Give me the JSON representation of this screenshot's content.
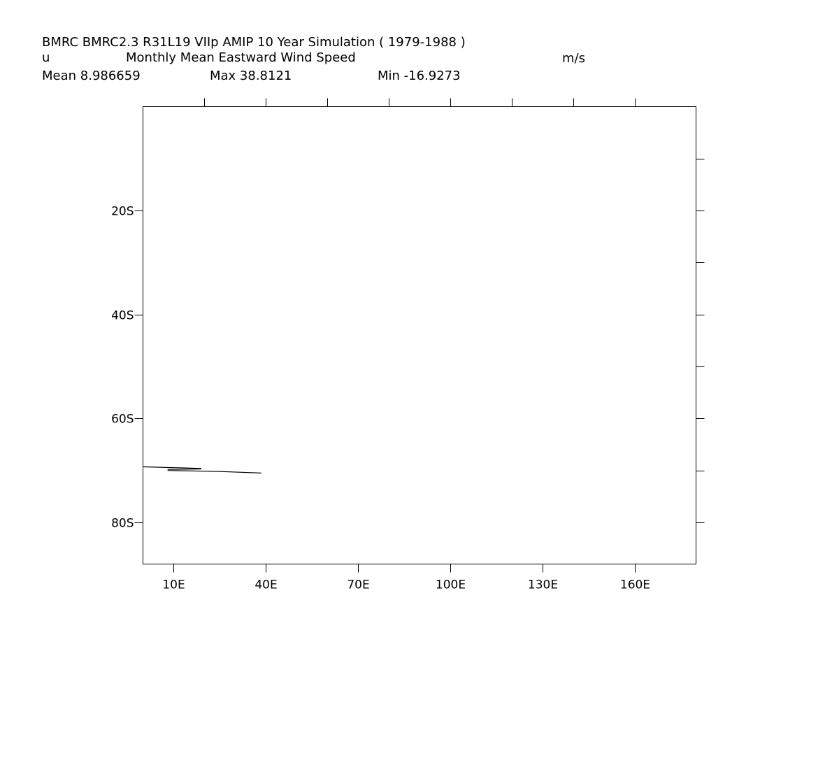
{
  "header": {
    "title": "BMRC BMRC2.3 R31L19 VIIp AMIP 10 Year Simulation ( 1979-1988 )",
    "variable": "u",
    "long_name": "Monthly Mean Eastward Wind Speed",
    "units": "m/s",
    "mean_text": "Mean 8.986659",
    "max_text": "Max 38.8121",
    "min_text": "Min -16.9273"
  },
  "map": {
    "lon_range": [
      0,
      180
    ],
    "lat_range": [
      0,
      -88
    ],
    "x_ticks": [
      {
        "lon": 10,
        "label": "10E"
      },
      {
        "lon": 40,
        "label": "40E"
      },
      {
        "lon": 70,
        "label": "70E"
      },
      {
        "lon": 100,
        "label": "100E"
      },
      {
        "lon": 130,
        "label": "130E"
      },
      {
        "lon": 160,
        "label": "160E"
      }
    ],
    "top_tick_lons": [
      20,
      40,
      60,
      80,
      100,
      120,
      140,
      160
    ],
    "y_ticks": [
      {
        "lat": -20,
        "label": "20S"
      },
      {
        "lat": -40,
        "label": "40S"
      },
      {
        "lat": -60,
        "label": "60S"
      },
      {
        "lat": -80,
        "label": "80S"
      }
    ],
    "right_tick_lats": [
      -10,
      -20,
      -30,
      -40,
      -50,
      -60,
      -70,
      -80
    ],
    "line_color": "#000000"
  },
  "chart_data": {
    "type": "line",
    "title": "BMRC BMRC2.3 R31L19 VIIp AMIP 10 Year Simulation ( 1979-1988 )",
    "xlabel": "",
    "ylabel": "",
    "xlim": [
      0,
      180
    ],
    "ylim": [
      -88,
      0
    ],
    "grid": false,
    "series": [
      {
        "x": [
          0,
          13,
          19
        ],
        "y": [
          -69.3,
          -69.5,
          -69.6
        ]
      },
      {
        "x": [
          8,
          25,
          38.5
        ],
        "y": [
          -70.0,
          -70.2,
          -70.5
        ]
      },
      {
        "x": [
          8,
          19
        ],
        "y": [
          -69.8,
          -69.7
        ]
      }
    ]
  }
}
